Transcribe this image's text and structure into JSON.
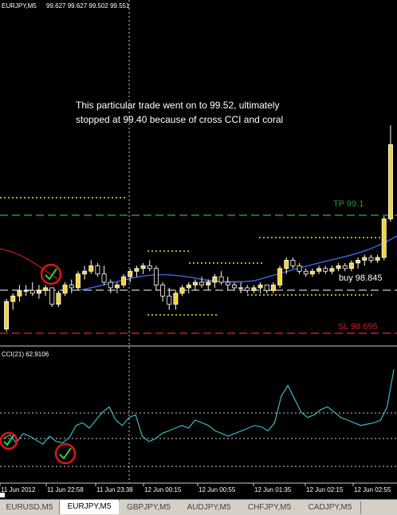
{
  "chart_header": {
    "symbol": "EURJPY,M5",
    "ohlc": "99.627 99.627 99.502 99.551"
  },
  "annotation": {
    "line1": "This particular trade went on to 99.52, ultimately",
    "line2": "stopped at 99.40 because of cross CCI and coral"
  },
  "price_labels": {
    "tp": "TP 99.1",
    "buy": "buy 98.845",
    "sl": "SL 98.695"
  },
  "indicator": {
    "label": "CCI(21) 62.9106"
  },
  "time_axis": [
    "11 Jun 2012",
    "11 Jun 22:58",
    "11 Jun 23:38",
    "12 Jun 00:15",
    "12 Jun 00:55",
    "12 Jun 01:35",
    "12 Jun 02:15",
    "12 Jun 02:55"
  ],
  "tabs": [
    {
      "label": "EURUSD,M5",
      "active": false
    },
    {
      "label": "EURJPY,M5",
      "active": true
    },
    {
      "label": "GBPJPY,M5",
      "active": false
    },
    {
      "label": "AUDJPY,M5",
      "active": false
    },
    {
      "label": "CHFJPY,M5",
      "active": false
    },
    {
      "label": "CADJPY,M5",
      "active": false
    }
  ],
  "colors": {
    "background": "#000000",
    "bull_candle": "#f5d23a",
    "bear_candle": "#000000",
    "candle_outline": "#ffffff",
    "tp_line": "#1f9a2c",
    "sl_line": "#c8192a",
    "buy_line": "#ffffff",
    "dotted_levels": "#e6e62a",
    "coral_line": "#c01a1a",
    "ma_line": "#3860d8",
    "cci_line": "#3ab8c0",
    "check_circle": "#e01515",
    "check_mark": "#2cd24a"
  },
  "icons": [
    "check-circle-icon"
  ],
  "chart_data": {
    "type": "candlestick",
    "price_levels": {
      "tp": 99.1,
      "buy": 98.845,
      "sl": 98.695
    },
    "candles": [
      {
        "open": 98.71,
        "high": 98.82,
        "low": 98.7,
        "close": 98.81
      },
      {
        "open": 98.81,
        "high": 98.84,
        "low": 98.78,
        "close": 98.83
      },
      {
        "open": 98.83,
        "high": 98.87,
        "low": 98.81,
        "close": 98.85
      },
      {
        "open": 98.85,
        "high": 98.87,
        "low": 98.83,
        "close": 98.85
      },
      {
        "open": 98.85,
        "high": 98.88,
        "low": 98.83,
        "close": 98.84
      },
      {
        "open": 98.84,
        "high": 98.87,
        "low": 98.82,
        "close": 98.85
      },
      {
        "open": 98.85,
        "high": 98.87,
        "low": 98.83,
        "close": 98.86
      },
      {
        "open": 98.86,
        "high": 98.86,
        "low": 98.79,
        "close": 98.8
      },
      {
        "open": 98.8,
        "high": 98.85,
        "low": 98.79,
        "close": 98.84
      },
      {
        "open": 98.84,
        "high": 98.88,
        "low": 98.83,
        "close": 98.87
      },
      {
        "open": 98.87,
        "high": 98.89,
        "low": 98.84,
        "close": 98.86
      },
      {
        "open": 98.86,
        "high": 98.92,
        "low": 98.85,
        "close": 98.91
      },
      {
        "open": 98.91,
        "high": 98.94,
        "low": 98.89,
        "close": 98.92
      },
      {
        "open": 98.92,
        "high": 98.96,
        "low": 98.91,
        "close": 98.94
      },
      {
        "open": 98.94,
        "high": 98.95,
        "low": 98.9,
        "close": 98.91
      },
      {
        "open": 98.91,
        "high": 98.94,
        "low": 98.87,
        "close": 98.88
      },
      {
        "open": 98.88,
        "high": 98.89,
        "low": 98.84,
        "close": 98.86
      },
      {
        "open": 98.86,
        "high": 98.88,
        "low": 98.84,
        "close": 98.87
      },
      {
        "open": 98.87,
        "high": 98.91,
        "low": 98.86,
        "close": 98.9
      },
      {
        "open": 98.9,
        "high": 98.93,
        "low": 98.88,
        "close": 98.92
      },
      {
        "open": 98.92,
        "high": 98.94,
        "low": 98.9,
        "close": 98.93
      },
      {
        "open": 98.93,
        "high": 98.95,
        "low": 98.91,
        "close": 98.94
      },
      {
        "open": 98.94,
        "high": 98.96,
        "low": 98.92,
        "close": 98.93
      },
      {
        "open": 98.93,
        "high": 98.94,
        "low": 98.85,
        "close": 98.87
      },
      {
        "open": 98.87,
        "high": 98.88,
        "low": 98.81,
        "close": 98.83
      },
      {
        "open": 98.83,
        "high": 98.86,
        "low": 98.78,
        "close": 98.8
      },
      {
        "open": 98.8,
        "high": 98.85,
        "low": 98.78,
        "close": 98.84
      },
      {
        "open": 98.84,
        "high": 98.87,
        "low": 98.83,
        "close": 98.86
      },
      {
        "open": 98.86,
        "high": 98.88,
        "low": 98.84,
        "close": 98.87
      },
      {
        "open": 98.87,
        "high": 98.89,
        "low": 98.85,
        "close": 98.88
      },
      {
        "open": 98.88,
        "high": 98.9,
        "low": 98.86,
        "close": 98.87
      },
      {
        "open": 98.87,
        "high": 98.89,
        "low": 98.85,
        "close": 98.88
      },
      {
        "open": 98.88,
        "high": 98.91,
        "low": 98.86,
        "close": 98.9
      },
      {
        "open": 98.9,
        "high": 98.92,
        "low": 98.87,
        "close": 98.88
      },
      {
        "open": 98.88,
        "high": 98.9,
        "low": 98.85,
        "close": 98.87
      },
      {
        "open": 98.87,
        "high": 98.88,
        "low": 98.85,
        "close": 98.86
      },
      {
        "open": 98.86,
        "high": 98.88,
        "low": 98.84,
        "close": 98.86
      },
      {
        "open": 98.86,
        "high": 98.87,
        "low": 98.84,
        "close": 98.85
      },
      {
        "open": 98.85,
        "high": 98.87,
        "low": 98.84,
        "close": 98.86
      },
      {
        "open": 98.86,
        "high": 98.88,
        "low": 98.84,
        "close": 98.87
      },
      {
        "open": 98.87,
        "high": 98.87,
        "low": 98.84,
        "close": 98.85
      },
      {
        "open": 98.85,
        "high": 98.88,
        "low": 98.84,
        "close": 98.87
      },
      {
        "open": 98.87,
        "high": 98.94,
        "low": 98.86,
        "close": 98.93
      },
      {
        "open": 98.93,
        "high": 98.97,
        "low": 98.91,
        "close": 98.96
      },
      {
        "open": 98.96,
        "high": 98.97,
        "low": 98.93,
        "close": 98.94
      },
      {
        "open": 98.94,
        "high": 98.95,
        "low": 98.91,
        "close": 98.92
      },
      {
        "open": 98.92,
        "high": 98.93,
        "low": 98.9,
        "close": 98.91
      },
      {
        "open": 98.91,
        "high": 98.93,
        "low": 98.9,
        "close": 98.92
      },
      {
        "open": 98.92,
        "high": 98.94,
        "low": 98.91,
        "close": 98.93
      },
      {
        "open": 98.93,
        "high": 98.94,
        "low": 98.91,
        "close": 98.92
      },
      {
        "open": 98.92,
        "high": 98.94,
        "low": 98.91,
        "close": 98.93
      },
      {
        "open": 98.93,
        "high": 98.95,
        "low": 98.92,
        "close": 98.94
      },
      {
        "open": 98.94,
        "high": 98.95,
        "low": 98.92,
        "close": 98.93
      },
      {
        "open": 98.93,
        "high": 98.96,
        "low": 98.92,
        "close": 98.95
      },
      {
        "open": 98.95,
        "high": 98.97,
        "low": 98.93,
        "close": 98.96
      },
      {
        "open": 98.96,
        "high": 98.98,
        "low": 98.94,
        "close": 98.97
      },
      {
        "open": 98.97,
        "high": 98.98,
        "low": 98.95,
        "close": 98.96
      },
      {
        "open": 98.96,
        "high": 98.98,
        "low": 98.95,
        "close": 98.97
      },
      {
        "open": 98.97,
        "high": 99.12,
        "low": 98.96,
        "close": 99.11
      },
      {
        "open": 99.11,
        "high": 99.45,
        "low": 99.1,
        "close": 99.38
      }
    ],
    "cci": [
      -40,
      -25,
      -55,
      -20,
      -30,
      -45,
      -60,
      -30,
      -50,
      -55,
      -35,
      10,
      20,
      0,
      30,
      60,
      80,
      30,
      10,
      40,
      50,
      -30,
      -50,
      -40,
      -20,
      -10,
      0,
      10,
      0,
      30,
      20,
      10,
      -10,
      -20,
      -30,
      -20,
      -10,
      0,
      10,
      5,
      -10,
      20,
      120,
      160,
      110,
      60,
      40,
      50,
      70,
      80,
      60,
      40,
      30,
      20,
      10,
      15,
      20,
      30,
      80,
      220
    ],
    "cci_levels": [
      100,
      0,
      -100
    ],
    "coral": [
      99.0,
      98.97,
      98.94,
      98.92,
      98.9,
      98.89
    ],
    "ma": [
      98.845,
      98.85,
      98.86,
      98.87,
      98.88,
      98.89,
      98.9,
      98.89,
      98.88,
      98.88,
      98.87,
      98.87,
      98.87,
      98.875,
      98.88,
      98.89,
      98.9,
      98.91,
      98.92,
      98.93,
      98.935,
      98.94,
      98.95,
      98.96,
      98.97,
      98.98,
      98.99,
      99.0,
      99.03
    ],
    "y_range_price": [
      98.66,
      99.5
    ],
    "y_range_cci": [
      -200,
      260
    ]
  }
}
